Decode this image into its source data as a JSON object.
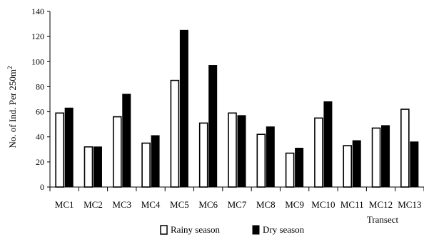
{
  "chart_data": {
    "type": "bar",
    "title": "",
    "xlabel": "Transect",
    "ylabel": "No. of Ind. Per 250m",
    "ylabel_superscript": "2",
    "ylim": [
      0,
      140
    ],
    "yticks": [
      0,
      20,
      40,
      60,
      80,
      100,
      120,
      140
    ],
    "grid": false,
    "legend_position": "bottom",
    "categories": [
      "MC1",
      "MC2",
      "MC3",
      "MC4",
      "MC5",
      "MC6",
      "MC7",
      "MC8",
      "MC9",
      "MC10",
      "MC11",
      "MC12",
      "MC13"
    ],
    "series": [
      {
        "name": "Rainy season",
        "color": "#ffffff",
        "values": [
          59,
          32,
          56,
          35,
          85,
          51,
          59,
          42,
          27,
          55,
          33,
          47,
          62
        ]
      },
      {
        "name": "Dry season",
        "color": "#000000",
        "values": [
          63,
          32,
          74,
          41,
          125,
          97,
          57,
          48,
          31,
          68,
          37,
          49,
          36
        ]
      }
    ]
  }
}
